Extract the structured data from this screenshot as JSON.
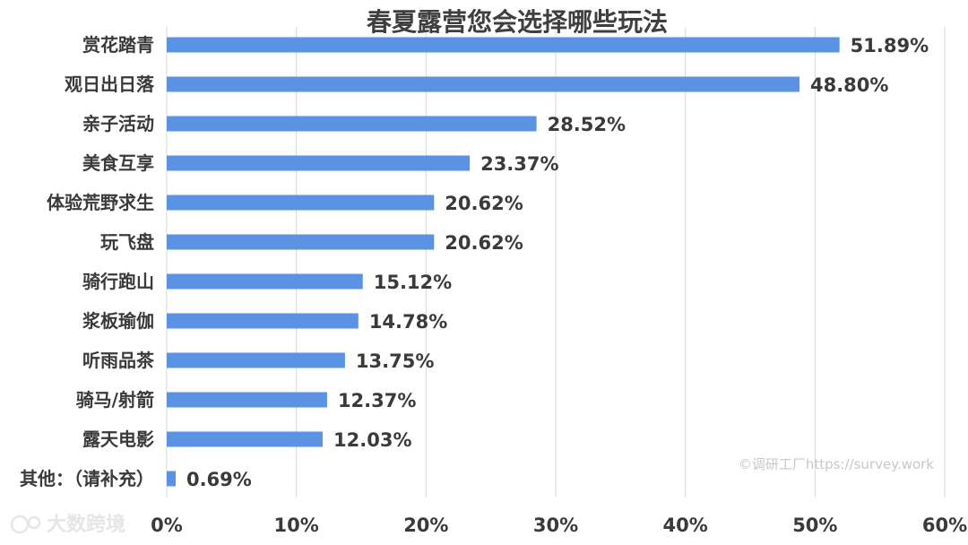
{
  "chart_data": {
    "type": "bar",
    "orientation": "horizontal",
    "title": "春夏露营您会选择哪些玩法",
    "categories": [
      "赏花踏青",
      "观日出日落",
      "亲子活动",
      "美食互享",
      "体验荒野求生",
      "玩飞盘",
      "骑行跑山",
      "浆板瑜伽",
      "听雨品茶",
      "骑马/射箭",
      "露天电影",
      "其他：（请补充）"
    ],
    "values": [
      51.89,
      48.8,
      28.52,
      23.37,
      20.62,
      20.62,
      15.12,
      14.78,
      13.75,
      12.37,
      12.03,
      0.69
    ],
    "value_labels": [
      "51.89%",
      "48.80%",
      "28.52%",
      "23.37%",
      "20.62%",
      "20.62%",
      "15.12%",
      "14.78%",
      "13.75%",
      "12.37%",
      "12.03%",
      "0.69%"
    ],
    "xlim": [
      0,
      60
    ],
    "x_ticks": [
      "0%",
      "10%",
      "20%",
      "30%",
      "40%",
      "50%",
      "60%"
    ],
    "grid": true,
    "bar_color": "#5b93e4"
  },
  "watermark": {
    "source": "©调研工厂https://survey.work",
    "brand": "大数跨境"
  }
}
